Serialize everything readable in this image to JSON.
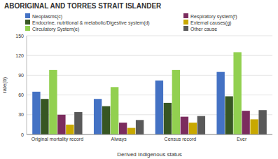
{
  "chart_data": {
    "type": "bar",
    "title": "ABORIGINAL AND TORRES STRAIT ISLANDER",
    "xlabel": "Derived Indigenous status",
    "ylabel": "rate(b)",
    "categories": [
      "Original mortality record",
      "Always",
      "Census record",
      "Ever"
    ],
    "series": [
      {
        "name": "Neoplasms(c)",
        "color": "#4472C4",
        "values": [
          65,
          54,
          82,
          95
        ]
      },
      {
        "name": "Endocrine, nutritional & metabolic/Digestive system(d)",
        "color": "#375623",
        "values": [
          54,
          43,
          48,
          58
        ]
      },
      {
        "name": "Circulatory System(e)",
        "color": "#92D050",
        "values": [
          98,
          72,
          98,
          125
        ]
      },
      {
        "name": "Respiratory system(f)",
        "color": "#7B2C5E",
        "values": [
          30,
          18,
          27,
          36
        ]
      },
      {
        "name": "External causes(g)",
        "color": "#C8A800",
        "values": [
          15,
          10,
          18,
          23
        ]
      },
      {
        "name": "Other cause",
        "color": "#595959",
        "values": [
          34,
          22,
          28,
          37
        ]
      }
    ],
    "ylim": [
      0,
      150
    ],
    "yticks": [
      0,
      30,
      60,
      90,
      120,
      150
    ],
    "grid": true,
    "legend": "top"
  }
}
